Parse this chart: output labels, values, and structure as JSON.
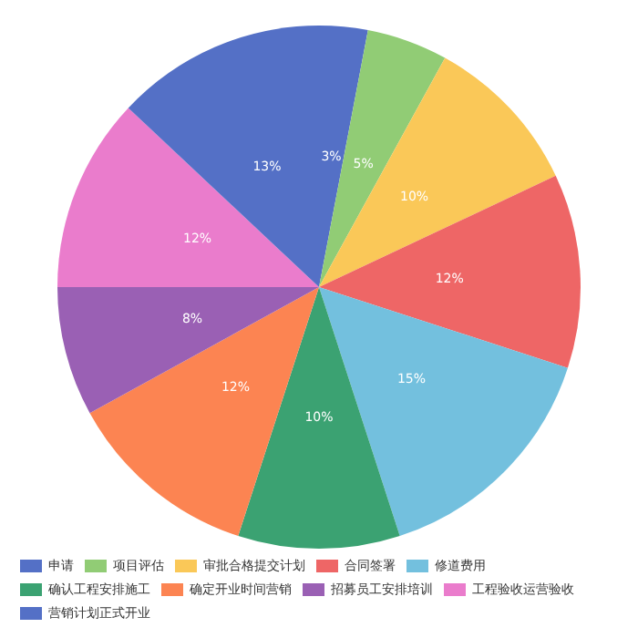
{
  "chart_data": {
    "type": "pie",
    "categories": [
      "申请",
      "项目评估",
      "审批合格提交计划",
      "合同签署",
      "修道费用",
      "确认工程安排施工",
      "确定开业时间营销",
      "招募员工安排培训",
      "工程验收运营验收",
      "营销计划正式开业"
    ],
    "values": [
      3,
      5,
      10,
      12,
      15,
      10,
      12,
      8,
      12,
      13
    ],
    "colors": [
      "#5470c6",
      "#91cc75",
      "#fac858",
      "#ee6666",
      "#73c0de",
      "#3ba272",
      "#fc8452",
      "#9a60b4",
      "#ea7ccc",
      "#5470c6"
    ],
    "value_labels": [
      "3%",
      "5%",
      "10%",
      "12%",
      "15%",
      "10%",
      "12%",
      "8%",
      "12%",
      "13%"
    ],
    "legend": "bottom"
  }
}
